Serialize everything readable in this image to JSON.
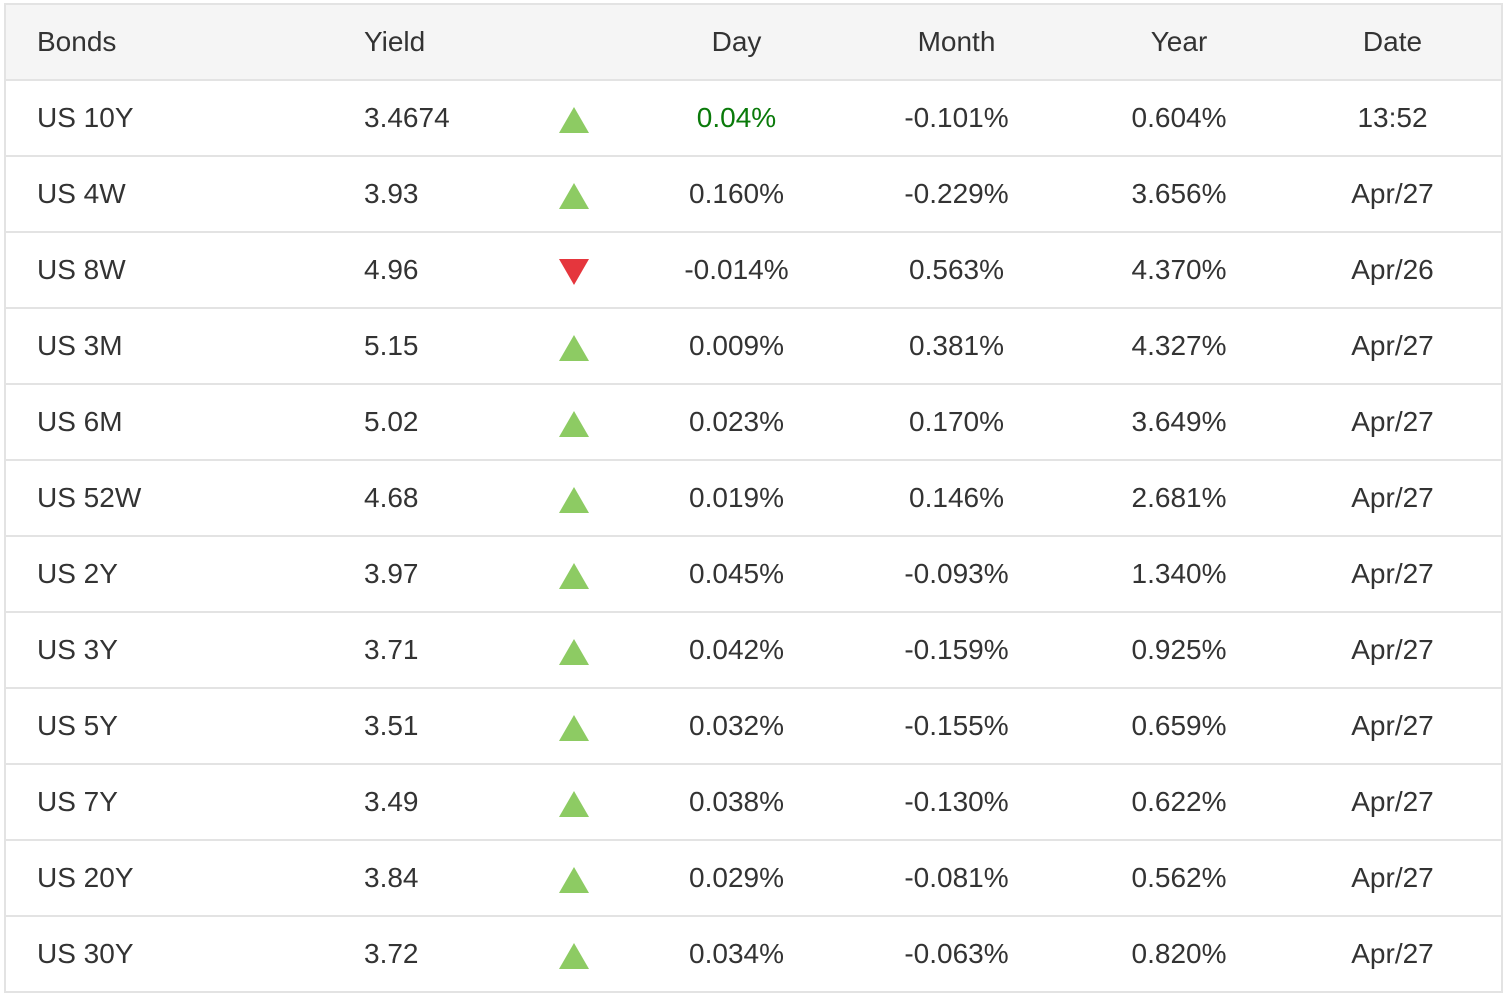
{
  "headers": {
    "bonds": "Bonds",
    "yield": "Yield",
    "day": "Day",
    "month": "Month",
    "year": "Year",
    "date": "Date"
  },
  "colors": {
    "up": "#8dcb63",
    "down": "#e5363d",
    "highlight": "#0a7a0a"
  },
  "rows": [
    {
      "name": "US 10Y",
      "yield": "3.4674",
      "direction": "up",
      "day": "0.04%",
      "month": "-0.101%",
      "year": "0.604%",
      "date": "13:52",
      "highlight": true
    },
    {
      "name": "US 4W",
      "yield": "3.93",
      "direction": "up",
      "day": "0.160%",
      "month": "-0.229%",
      "year": "3.656%",
      "date": "Apr/27"
    },
    {
      "name": "US 8W",
      "yield": "4.96",
      "direction": "down",
      "day": "-0.014%",
      "month": "0.563%",
      "year": "4.370%",
      "date": "Apr/26"
    },
    {
      "name": "US 3M",
      "yield": "5.15",
      "direction": "up",
      "day": "0.009%",
      "month": "0.381%",
      "year": "4.327%",
      "date": "Apr/27"
    },
    {
      "name": "US 6M",
      "yield": "5.02",
      "direction": "up",
      "day": "0.023%",
      "month": "0.170%",
      "year": "3.649%",
      "date": "Apr/27"
    },
    {
      "name": "US 52W",
      "yield": "4.68",
      "direction": "up",
      "day": "0.019%",
      "month": "0.146%",
      "year": "2.681%",
      "date": "Apr/27"
    },
    {
      "name": "US 2Y",
      "yield": "3.97",
      "direction": "up",
      "day": "0.045%",
      "month": "-0.093%",
      "year": "1.340%",
      "date": "Apr/27"
    },
    {
      "name": "US 3Y",
      "yield": "3.71",
      "direction": "up",
      "day": "0.042%",
      "month": "-0.159%",
      "year": "0.925%",
      "date": "Apr/27"
    },
    {
      "name": "US 5Y",
      "yield": "3.51",
      "direction": "up",
      "day": "0.032%",
      "month": "-0.155%",
      "year": "0.659%",
      "date": "Apr/27"
    },
    {
      "name": "US 7Y",
      "yield": "3.49",
      "direction": "up",
      "day": "0.038%",
      "month": "-0.130%",
      "year": "0.622%",
      "date": "Apr/27"
    },
    {
      "name": "US 20Y",
      "yield": "3.84",
      "direction": "up",
      "day": "0.029%",
      "month": "-0.081%",
      "year": "0.562%",
      "date": "Apr/27"
    },
    {
      "name": "US 30Y",
      "yield": "3.72",
      "direction": "up",
      "day": "0.034%",
      "month": "-0.063%",
      "year": "0.820%",
      "date": "Apr/27"
    }
  ]
}
